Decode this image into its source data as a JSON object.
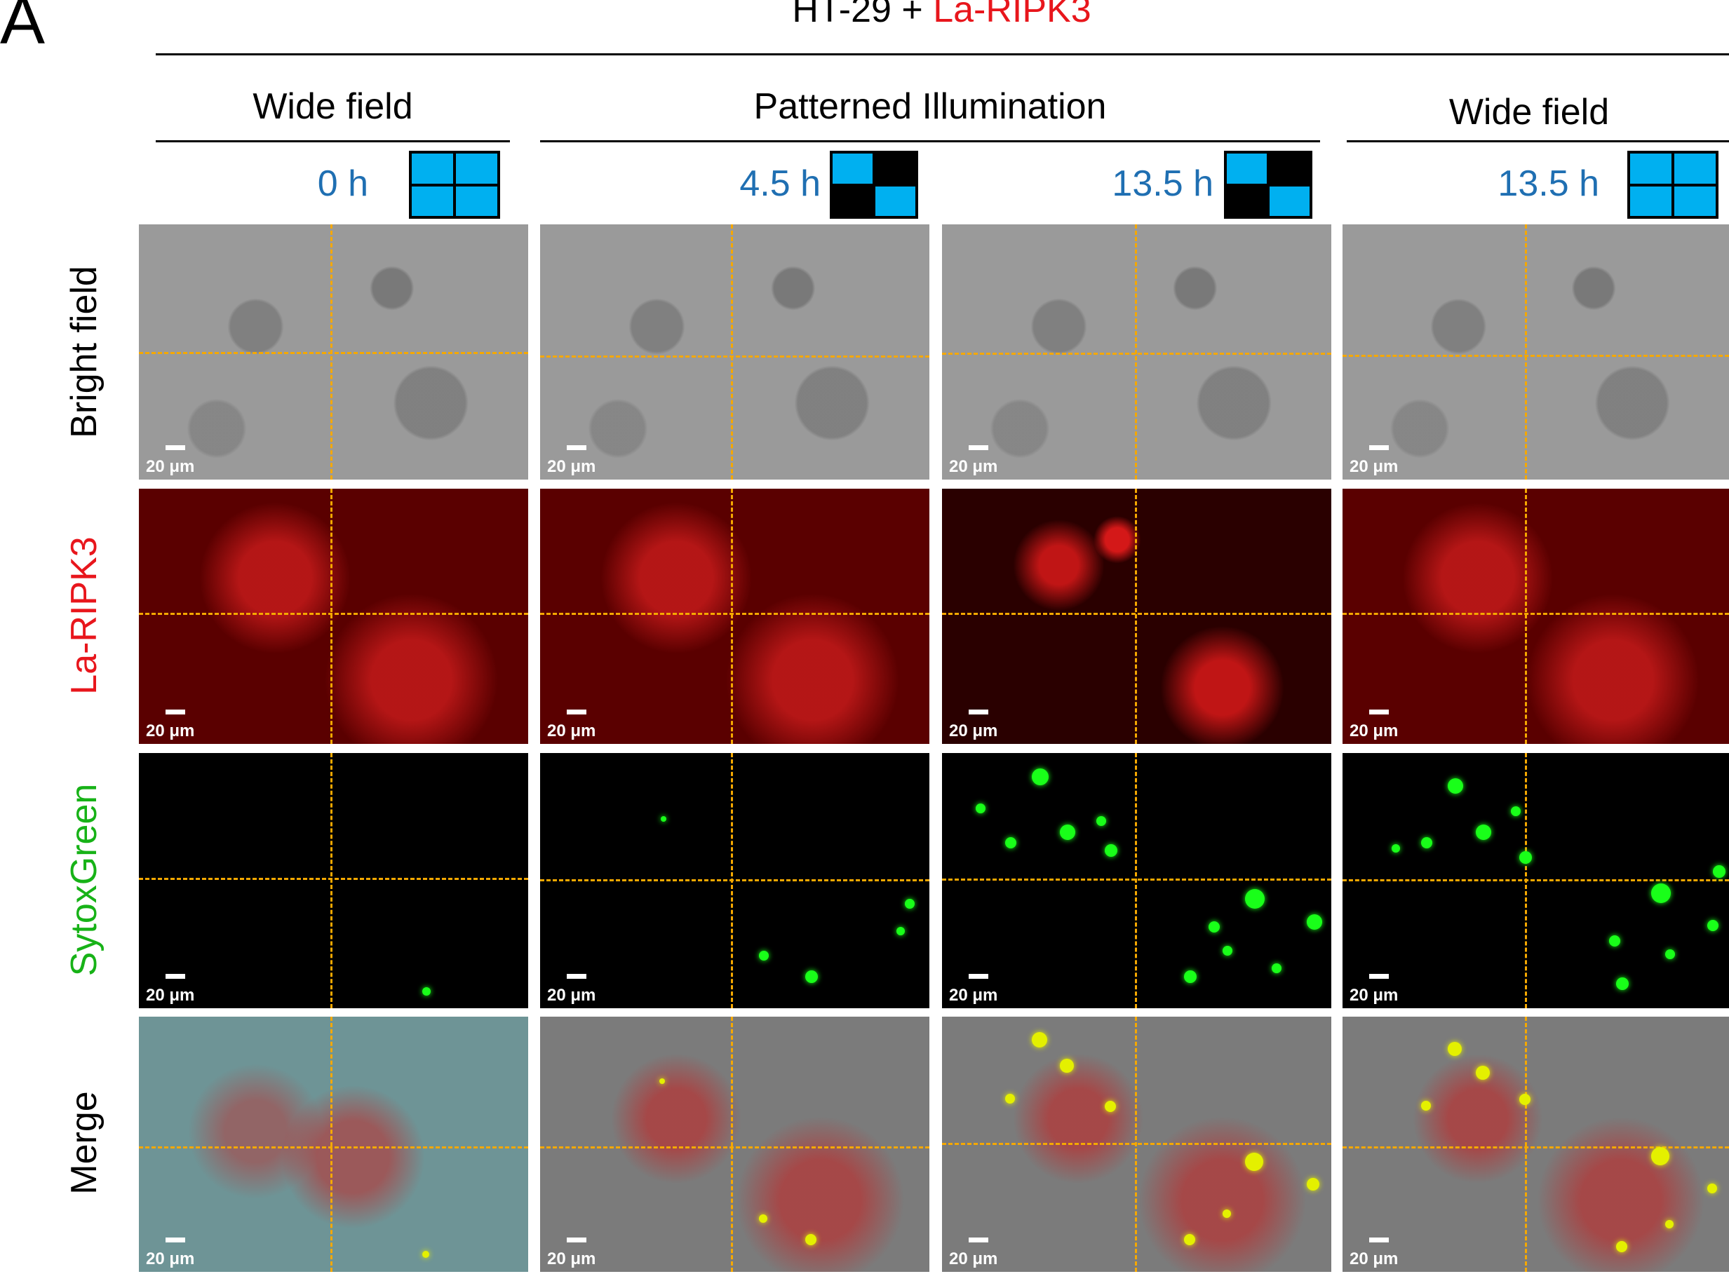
{
  "figure": {
    "panel_letter": "A",
    "title_prefix": "HT-29 + ",
    "title_highlight": "La-RIPK3",
    "sections": {
      "wide_field_1": "Wide field",
      "patterned": "Patterned Illumination",
      "wide_field_2": "Wide field"
    },
    "columns": [
      {
        "time": "0 h",
        "pattern": "full"
      },
      {
        "time": "4.5 h",
        "pattern": "diagonal"
      },
      {
        "time": "13.5 h",
        "pattern": "diagonal"
      },
      {
        "time": "13.5 h",
        "pattern": "full"
      }
    ],
    "rows": [
      {
        "label": "Bright field",
        "color": "#000000"
      },
      {
        "label": "La-RIPK3",
        "color": "#e8161c"
      },
      {
        "label": "SytoxGreen",
        "color": "#17b217"
      },
      {
        "label": "Merge",
        "color": "#000000"
      }
    ],
    "scale_bar_label": "20 μm",
    "colors": {
      "pattern_on": "#00b0f0",
      "crosshair": "#f5a800",
      "time_text": "#1f6fb2"
    }
  }
}
